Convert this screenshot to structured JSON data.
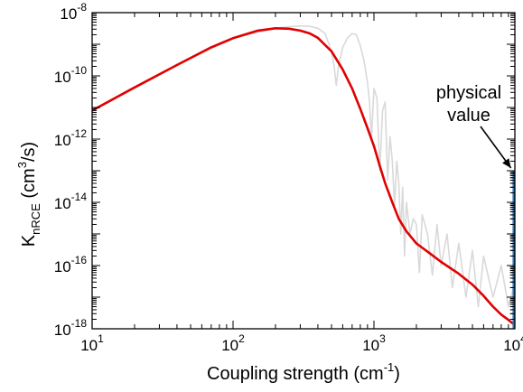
{
  "chart_data": {
    "type": "line",
    "title": "",
    "xlabel": "Coupling strength (cm",
    "xlabel_sup": "-1",
    "xlabel_end": ")",
    "ylabel_main": "K",
    "ylabel_sub": "nRCE",
    "ylabel_rest": " (cm",
    "ylabel_sup": "3",
    "ylabel_end": "/s)",
    "x_scale": "log",
    "y_scale": "log",
    "xlim": [
      10,
      10000
    ],
    "ylim": [
      1e-18,
      1e-08
    ],
    "x_tick_labels": [
      {
        "base": "10",
        "exp": "1"
      },
      {
        "base": "10",
        "exp": "2"
      },
      {
        "base": "10",
        "exp": "3"
      },
      {
        "base": "10",
        "exp": "4"
      }
    ],
    "y_tick_labels": [
      {
        "base": "10",
        "exp": "-18"
      },
      {
        "base": "10",
        "exp": "-16"
      },
      {
        "base": "10",
        "exp": "-14"
      },
      {
        "base": "10",
        "exp": "-12"
      },
      {
        "base": "10",
        "exp": "-10"
      },
      {
        "base": "10",
        "exp": "-8"
      }
    ],
    "grid": false,
    "legend": "none",
    "series": [
      {
        "color": "#e00000",
        "x": [
          10,
          20,
          40,
          70,
          100,
          150,
          200,
          250,
          300,
          350,
          400,
          500,
          600,
          700,
          800,
          900,
          1000,
          1100,
          1200,
          1350,
          1500,
          1700,
          2000,
          2500,
          3000,
          4000,
          5000,
          6000,
          7000,
          8000,
          9000,
          10000
        ],
        "y": [
          8e-12,
          4.3e-11,
          2.2e-10,
          8e-10,
          1.55e-09,
          2.7e-09,
          3.2e-09,
          3.1e-09,
          2.7e-09,
          2.2e-09,
          1.6e-09,
          6e-10,
          1.6e-10,
          4e-11,
          9e-12,
          2.2e-12,
          6e-13,
          1.4e-13,
          4e-14,
          1e-14,
          3e-15,
          1.2e-15,
          5e-16,
          2.4e-16,
          1.3e-16,
          5.5e-17,
          2.5e-17,
          1.1e-17,
          5e-18,
          2.8e-18,
          1.9e-18,
          1.3e-18
        ]
      },
      {
        "color": "#d9d9d9",
        "x": [
          10,
          40,
          100,
          200,
          250,
          300,
          350,
          400,
          450,
          500,
          520,
          540,
          560,
          600,
          650,
          700,
          750,
          800,
          850,
          900,
          930,
          960,
          1000,
          1050,
          1100,
          1150,
          1200,
          1250,
          1300,
          1350,
          1400,
          1450,
          1500,
          1550,
          1600,
          1650,
          1700,
          1800,
          1900,
          2000,
          2100,
          2200,
          2400,
          2600,
          2800,
          3000,
          3300,
          3600,
          4000,
          4500,
          5000,
          5500,
          6000,
          7000,
          8000,
          9000,
          10000
        ],
        "y": [
          8e-12,
          2.2e-10,
          1.55e-09,
          3.2e-09,
          3.6e-09,
          3.8e-09,
          3.7e-09,
          3.2e-09,
          2.2e-09,
          6e-10,
          2.2e-10,
          5e-11,
          2e-10,
          8e-10,
          1.6e-09,
          2.2e-09,
          2e-09,
          9e-10,
          3e-10,
          6e-11,
          1.5e-11,
          1e-12,
          4e-11,
          2e-11,
          1e-13,
          8e-12,
          1.5e-11,
          5e-14,
          1.2e-12,
          2e-13,
          8e-15,
          2e-13,
          4e-14,
          1e-15,
          3e-14,
          2e-16,
          1e-14,
          1e-15,
          3e-15,
          2e-15,
          6e-17,
          4e-15,
          1e-15,
          5e-17,
          2e-15,
          1e-16,
          1e-15,
          2e-17,
          5e-16,
          1e-17,
          3e-16,
          5e-18,
          2e-16,
          1e-17,
          1e-16,
          5e-18,
          3e-17
        ]
      }
    ],
    "physical_line": {
      "x": 9800,
      "y_top": 1e-13,
      "color": "#1f78c8"
    },
    "annotation": {
      "line1": "physical",
      "line2": "value",
      "arrow_to_x": 9800,
      "arrow_to_y": 1e-13
    }
  }
}
